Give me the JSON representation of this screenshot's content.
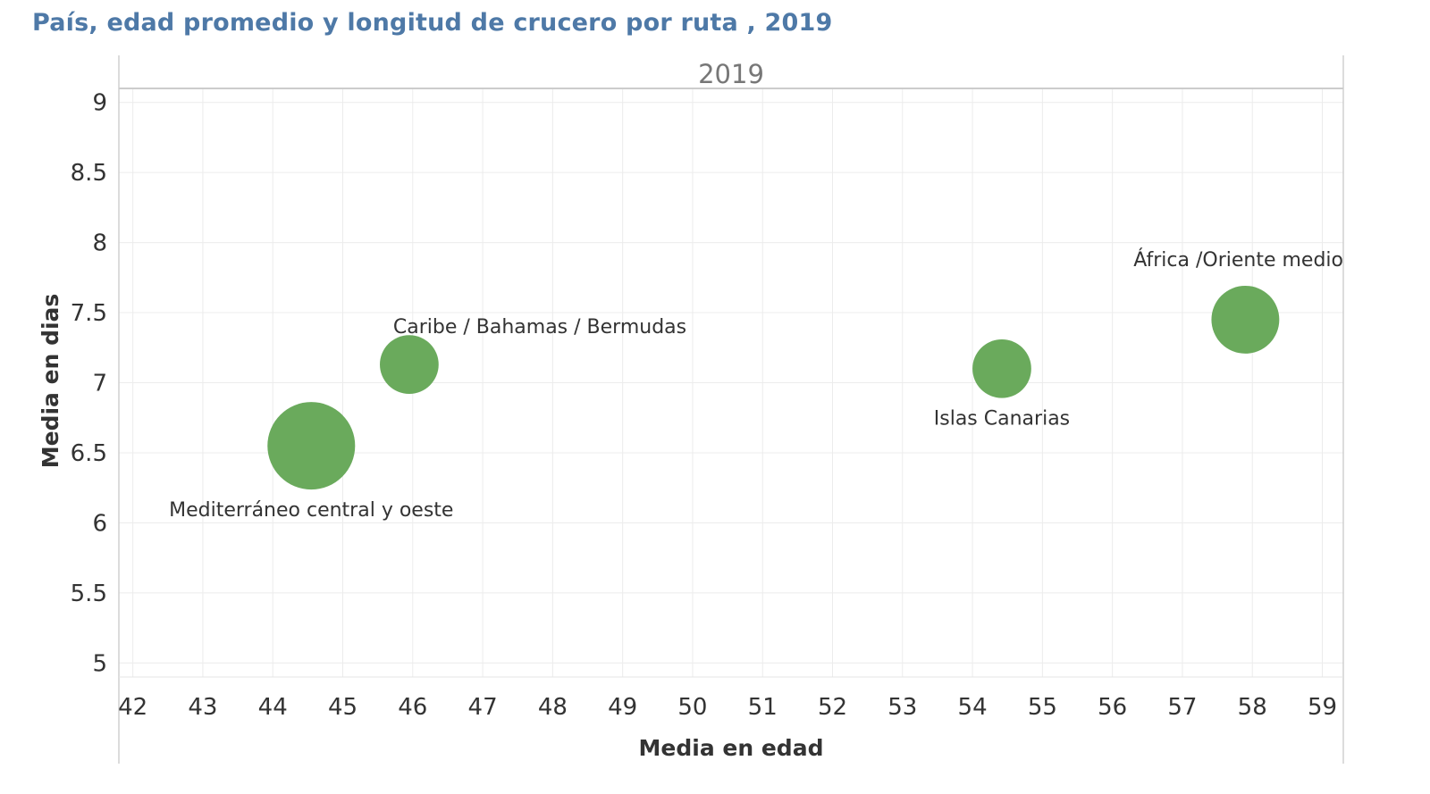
{
  "chart_data": {
    "type": "scatter",
    "title": "País, edad promedio y longitud de crucero por ruta , 2019",
    "panel": "2019",
    "xlabel": "Media en edad",
    "ylabel": "Media en dias",
    "xlim": [
      41.8,
      59.3
    ],
    "ylim": [
      4.9,
      9.1
    ],
    "x_ticks": [
      "42",
      "43",
      "44",
      "45",
      "46",
      "47",
      "48",
      "49",
      "50",
      "51",
      "52",
      "53",
      "54",
      "55",
      "56",
      "57",
      "58",
      "59"
    ],
    "y_ticks": [
      "9",
      "8.5",
      "8",
      "7.5",
      "7",
      "6.5",
      "6",
      "5.5",
      "5"
    ],
    "grid": true,
    "bubble_color": "#6aaa5c",
    "points": [
      {
        "label": "Mediterráneo central y oeste",
        "x": 44.55,
        "y": 6.55,
        "size": 1.0,
        "label_pos": "below"
      },
      {
        "label": "Caribe / Bahamas / Bermudas",
        "x": 45.95,
        "y": 7.13,
        "size": 0.45,
        "label_pos": "above-right"
      },
      {
        "label": "Islas Canarias",
        "x": 54.42,
        "y": 7.1,
        "size": 0.45,
        "label_pos": "below"
      },
      {
        "label": "África /Oriente medio",
        "x": 57.9,
        "y": 7.45,
        "size": 0.6,
        "label_pos": "above-left"
      }
    ]
  }
}
